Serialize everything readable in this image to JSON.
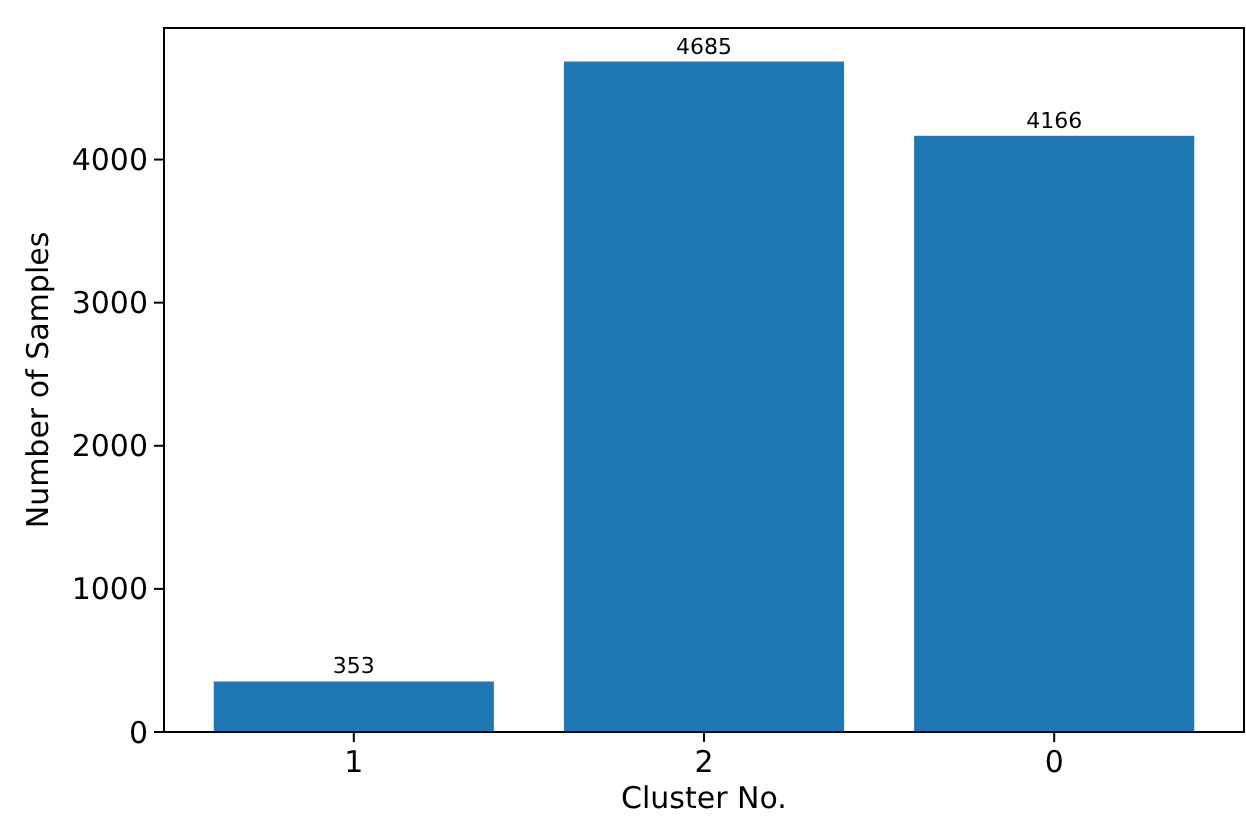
{
  "chart_data": {
    "type": "bar",
    "xlabel": "Cluster No.",
    "ylabel": "Number of Samples",
    "categories": [
      "1",
      "2",
      "0"
    ],
    "values": [
      353,
      4685,
      4166
    ],
    "color": "#1f77b4",
    "ylim": [
      0,
      4919.25
    ],
    "yticks": [
      0,
      1000,
      2000,
      3000,
      4000
    ],
    "data_labels": true,
    "grid": false
  }
}
